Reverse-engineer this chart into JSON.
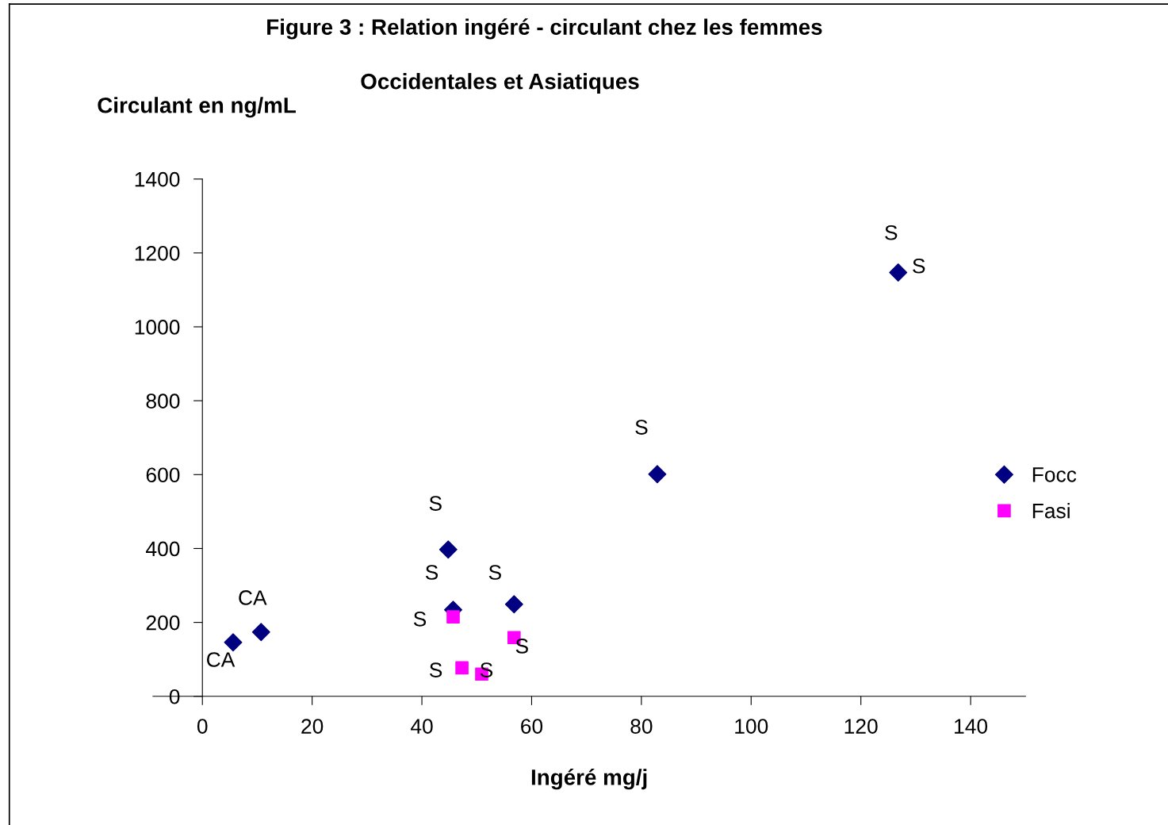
{
  "chart_data": {
    "type": "scatter",
    "title": "Figure 3 : Relation ingéré - circulant chez les femmes",
    "subtitle": "Occidentales et Asiatiques",
    "xlabel": "Ingéré mg/j",
    "ylabel": "Circulant en ng/mL",
    "xlim": [
      -9,
      150
    ],
    "ylim": [
      0,
      1400
    ],
    "xticks": [
      0,
      20,
      40,
      60,
      80,
      100,
      120,
      140
    ],
    "yticks": [
      0,
      200,
      400,
      600,
      800,
      1000,
      1200,
      1400
    ],
    "grid": false,
    "legend": "right",
    "series": [
      {
        "name": "Focc",
        "color": "#000080",
        "marker": "diamond",
        "x": [
          5.6,
          10.7,
          44.8,
          45.7,
          56.8,
          82.9,
          126.8
        ],
        "values": [
          146,
          174,
          397,
          234,
          249,
          601,
          1147
        ]
      },
      {
        "name": "Fasi",
        "color": "#ff00ff",
        "marker": "square",
        "x": [
          45.7,
          47.3,
          50.9,
          56.8
        ],
        "values": [
          215,
          77,
          60,
          159
        ]
      }
    ],
    "annotations": [
      {
        "text": "S",
        "x": 126.8,
        "y": 1147
      },
      {
        "text": "S",
        "x": 126.8,
        "y": 1147
      },
      {
        "text": "S",
        "x": 82.9,
        "y": 601
      },
      {
        "text": "S",
        "x": 44.8,
        "y": 397
      },
      {
        "text": "S",
        "x": 45.7,
        "y": 234
      },
      {
        "text": "S",
        "x": 56.8,
        "y": 249
      },
      {
        "text": "CA",
        "x": 10.7,
        "y": 174
      },
      {
        "text": "S",
        "x": 45.7,
        "y": 215
      },
      {
        "text": "CA",
        "x": 5.6,
        "y": 146
      },
      {
        "text": "S",
        "x": 47.3,
        "y": 77
      },
      {
        "text": "S",
        "x": 50.9,
        "y": 60
      },
      {
        "text": "S",
        "x": 56.8,
        "y": 159
      }
    ]
  }
}
